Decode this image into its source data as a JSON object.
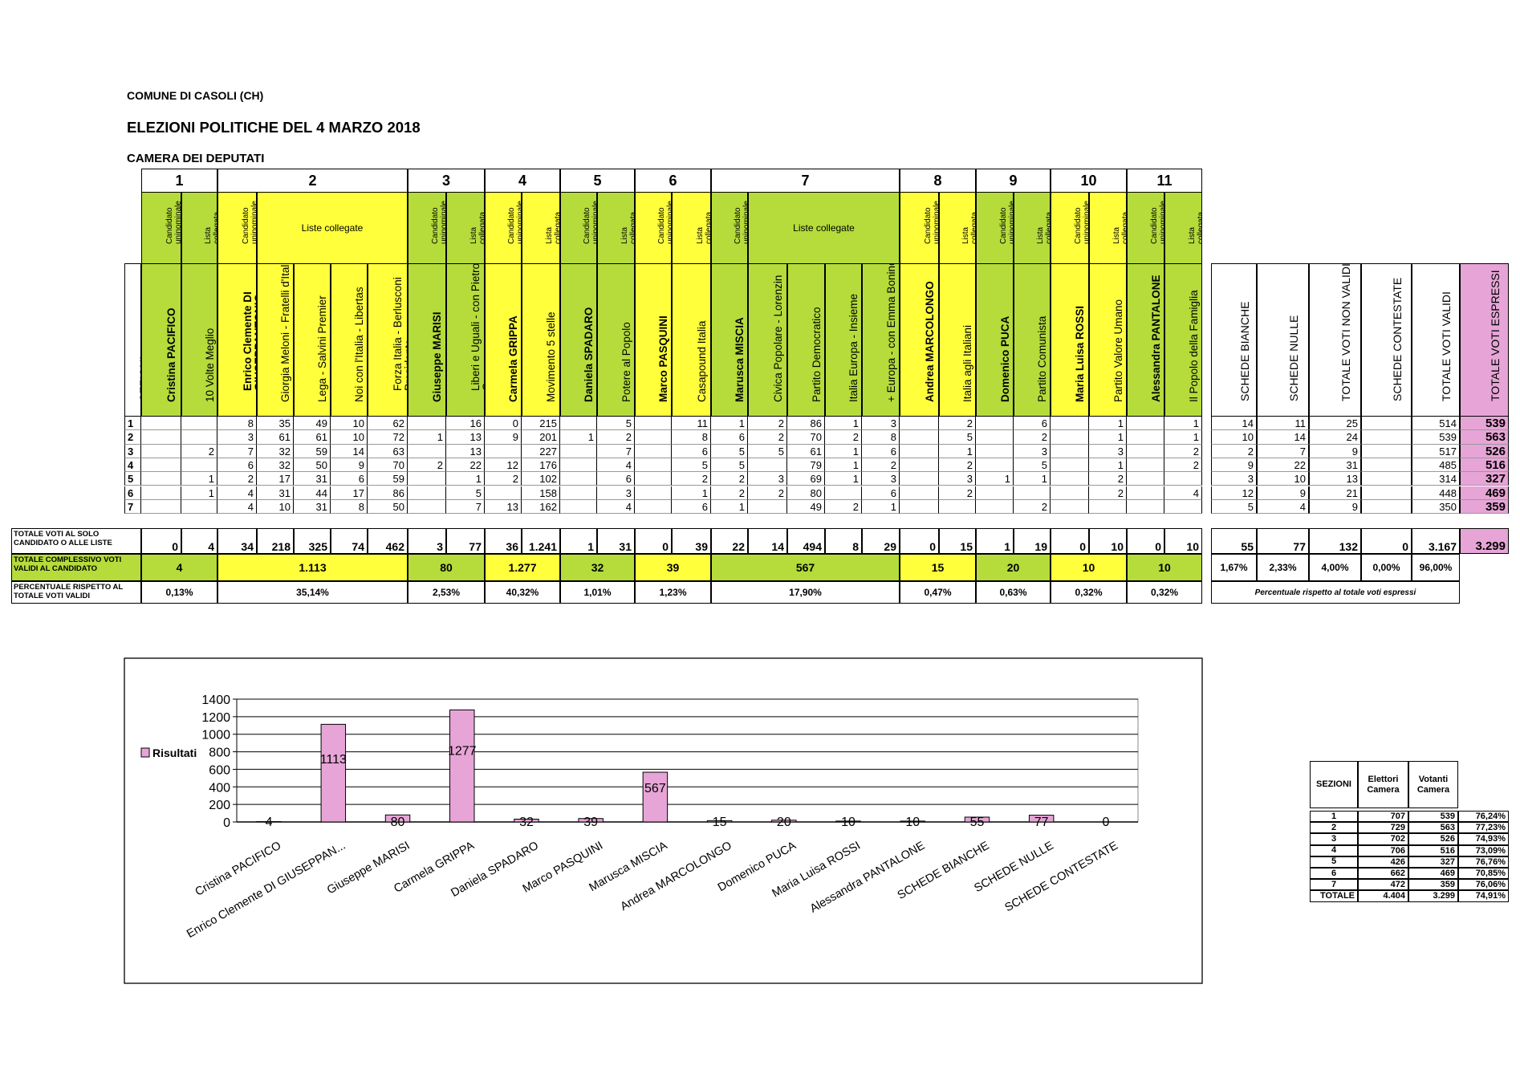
{
  "header": {
    "comune": "COMUNE DI CASOLI (CH)",
    "election": "ELEZIONI POLITICHE DEL 4 MARZO 2018",
    "chamber": "CAMERA DEI DEPUTATI"
  },
  "labels": {
    "sezioni": "SEZIONI",
    "cand_uni": "Candidato uninominale",
    "lista_coll": "Lista collegata",
    "liste_coll": "Liste collegate",
    "row_totale_solo": "TOTALE VOTI AL SOLO CANDIDATO O ALLE LISTE",
    "row_totale_compl": "TOTALE COMPLESSIVO VOTI VALIDI AL CANDIDATO",
    "row_percentuale": "PERCENTUALE RISPETTO AL TOTALE VOTI VALIDI",
    "pct_note": "Percentuale rispetto al totale voti espressi"
  },
  "groups": [
    {
      "n": "1",
      "compl": "4",
      "pct": "0,13%"
    },
    {
      "n": "2",
      "compl": "1.113",
      "pct": "35,14%"
    },
    {
      "n": "3",
      "compl": "80",
      "pct": "2,53%"
    },
    {
      "n": "4",
      "compl": "1.277",
      "pct": "40,32%"
    },
    {
      "n": "5",
      "compl": "32",
      "pct": "1,01%"
    },
    {
      "n": "6",
      "compl": "39",
      "pct": "1,23%"
    },
    {
      "n": "7",
      "compl": "567",
      "pct": "17,90%"
    },
    {
      "n": "8",
      "compl": "15",
      "pct": "0,47%"
    },
    {
      "n": "9",
      "compl": "20",
      "pct": "0,63%"
    },
    {
      "n": "10",
      "compl": "10",
      "pct": "0,32%"
    },
    {
      "n": "11",
      "compl": "10",
      "pct": "0,32%"
    }
  ],
  "columns": [
    {
      "name": "Cristina PACIFICO",
      "cand": true,
      "vals": [
        "",
        "",
        "",
        "",
        "",
        "",
        ""
      ],
      "total": "0"
    },
    {
      "name": "10 Volte Meglio",
      "cand": false,
      "vals": [
        "",
        "",
        "2",
        "",
        "1",
        "1",
        ""
      ],
      "total": "4"
    },
    {
      "name": "Enrico Clemente DI GIUSEPPANTONIO",
      "cand": true,
      "vals": [
        "8",
        "3",
        "7",
        "6",
        "2",
        "4",
        "4"
      ],
      "total": "34"
    },
    {
      "name": "Giorgia Meloni - Fratelli d'Italia",
      "cand": false,
      "vals": [
        "35",
        "61",
        "32",
        "32",
        "17",
        "31",
        "10"
      ],
      "total": "218"
    },
    {
      "name": "Lega - Salvini Premier",
      "cand": false,
      "vals": [
        "49",
        "61",
        "59",
        "50",
        "31",
        "44",
        "31"
      ],
      "total": "325"
    },
    {
      "name": "Noi con l'Italia - Libertas",
      "cand": false,
      "vals": [
        "10",
        "10",
        "14",
        "9",
        "6",
        "17",
        "8"
      ],
      "total": "74"
    },
    {
      "name": "Forza Italia - Berlusconi Presidente",
      "cand": false,
      "vals": [
        "62",
        "72",
        "63",
        "70",
        "59",
        "86",
        "50"
      ],
      "total": "462"
    },
    {
      "name": "Giuseppe MARISI",
      "cand": true,
      "vals": [
        "",
        "1",
        "",
        "2",
        "",
        "",
        ""
      ],
      "total": "3"
    },
    {
      "name": "Liberi e Uguali - con Pietro Grasso",
      "cand": false,
      "vals": [
        "16",
        "13",
        "13",
        "22",
        "1",
        "5",
        "7"
      ],
      "total": "77"
    },
    {
      "name": "Carmela GRIPPA",
      "cand": true,
      "vals": [
        "0",
        "9",
        "",
        "12",
        "2",
        "",
        "13"
      ],
      "total": "36"
    },
    {
      "name": "Movimento 5 stelle",
      "cand": false,
      "vals": [
        "215",
        "201",
        "227",
        "176",
        "102",
        "158",
        "162"
      ],
      "total": "1.241"
    },
    {
      "name": "Daniela SPADARO",
      "cand": true,
      "vals": [
        "",
        "1",
        "",
        "",
        "",
        "",
        ""
      ],
      "total": "1"
    },
    {
      "name": "Potere al Popolo",
      "cand": false,
      "vals": [
        "5",
        "2",
        "7",
        "4",
        "6",
        "3",
        "4"
      ],
      "total": "31"
    },
    {
      "name": "Marco PASQUINI",
      "cand": true,
      "vals": [
        "",
        "",
        "",
        "",
        "",
        "",
        ""
      ],
      "total": "0"
    },
    {
      "name": "Casapound Italia",
      "cand": false,
      "vals": [
        "11",
        "8",
        "6",
        "5",
        "2",
        "1",
        "6"
      ],
      "total": "39"
    },
    {
      "name": "Marusca MISCIA",
      "cand": true,
      "vals": [
        "1",
        "6",
        "5",
        "5",
        "2",
        "2",
        "1"
      ],
      "total": "22"
    },
    {
      "name": "Civica Popolare - Lorenzin",
      "cand": false,
      "vals": [
        "2",
        "2",
        "5",
        "",
        "3",
        "2",
        ""
      ],
      "total": "14"
    },
    {
      "name": "Partito Democratico",
      "cand": false,
      "vals": [
        "86",
        "70",
        "61",
        "79",
        "69",
        "80",
        "49"
      ],
      "total": "494"
    },
    {
      "name": "Italia Europa - Insieme",
      "cand": false,
      "vals": [
        "1",
        "2",
        "1",
        "1",
        "1",
        "",
        "2"
      ],
      "total": "8"
    },
    {
      "name": "+ Europa - con Emma Bonino",
      "cand": false,
      "vals": [
        "3",
        "8",
        "6",
        "2",
        "3",
        "6",
        "1"
      ],
      "total": "29"
    },
    {
      "name": "Andrea MARCOLONGO",
      "cand": true,
      "vals": [
        "",
        "",
        "",
        "",
        "",
        "",
        ""
      ],
      "total": "0"
    },
    {
      "name": "Italia agli Italiani",
      "cand": false,
      "vals": [
        "2",
        "5",
        "1",
        "2",
        "3",
        "2",
        ""
      ],
      "total": "15"
    },
    {
      "name": "Domenico PUCA",
      "cand": true,
      "vals": [
        "",
        "",
        "",
        "",
        "1",
        "",
        ""
      ],
      "total": "1"
    },
    {
      "name": "Partito Comunista",
      "cand": false,
      "vals": [
        "6",
        "2",
        "3",
        "5",
        "1",
        "",
        "2"
      ],
      "total": "19"
    },
    {
      "name": "Maria Luisa ROSSI",
      "cand": true,
      "vals": [
        "",
        "",
        "",
        "",
        "",
        "",
        ""
      ],
      "total": "0"
    },
    {
      "name": "Partito Valore Umano",
      "cand": false,
      "vals": [
        "1",
        "1",
        "3",
        "1",
        "2",
        "2",
        ""
      ],
      "total": "10"
    },
    {
      "name": "Alessandra PANTALONE",
      "cand": true,
      "vals": [
        "",
        "",
        "",
        "",
        "",
        "",
        ""
      ],
      "total": "0"
    },
    {
      "name": "Il Popolo della Famiglia",
      "cand": false,
      "vals": [
        "1",
        "1",
        "2",
        "2",
        "",
        "4",
        ""
      ],
      "total": "10"
    }
  ],
  "sections": [
    "1",
    "2",
    "3",
    "4",
    "5",
    "6",
    "7"
  ],
  "summary": [
    {
      "name": "SCHEDE BIANCHE",
      "vals": [
        "14",
        "10",
        "2",
        "9",
        "3",
        "12",
        "5"
      ],
      "total": "55",
      "pct": "1,67%"
    },
    {
      "name": "SCHEDE NULLE",
      "vals": [
        "11",
        "14",
        "7",
        "22",
        "10",
        "9",
        "4"
      ],
      "total": "77",
      "pct": "2,33%"
    },
    {
      "name": "TOTALE VOTI NON VALIDI",
      "vals": [
        "25",
        "24",
        "9",
        "31",
        "13",
        "21",
        "9"
      ],
      "total": "132",
      "pct": "4,00%"
    },
    {
      "name": "SCHEDE CONTESTATE",
      "vals": [
        "",
        "",
        "",
        "",
        "",
        "",
        ""
      ],
      "total": "0",
      "pct": "0,00%"
    },
    {
      "name": "TOTALE VOTI VALIDI",
      "vals": [
        "514",
        "539",
        "517",
        "485",
        "314",
        "448",
        "350"
      ],
      "total": "3.167",
      "pct": "96,00%"
    },
    {
      "name": "TOTALE VOTI ESPRESSI",
      "vals": [
        "539",
        "563",
        "526",
        "516",
        "327",
        "469",
        "359"
      ],
      "total": "3.299",
      "pct": ""
    }
  ],
  "small_table": {
    "headers": [
      "SEZIONI",
      "Elettori Camera",
      "Votanti Camera"
    ],
    "rows": [
      [
        "1",
        "707",
        "539",
        "76,24%"
      ],
      [
        "2",
        "729",
        "563",
        "77,23%"
      ],
      [
        "3",
        "702",
        "526",
        "74,93%"
      ],
      [
        "4",
        "706",
        "516",
        "73,09%"
      ],
      [
        "5",
        "426",
        "327",
        "76,76%"
      ],
      [
        "6",
        "662",
        "469",
        "70,85%"
      ],
      [
        "7",
        "472",
        "359",
        "76,06%"
      ],
      [
        "TOTALE",
        "4.404",
        "3.299",
        "74,91%"
      ]
    ]
  },
  "chart_data": {
    "type": "bar",
    "categories": [
      "Cristina PACIFICO",
      "Enrico Clemente DI GIUSEPPAN...",
      "Giuseppe MARISI",
      "Carmela GRIPPA",
      "Daniela SPADARO",
      "Marco PASQUINI",
      "Marusca MISCIA",
      "Andrea MARCOLONGO",
      "Domenico PUCA",
      "Maria Luisa ROSSI",
      "Alessandra PANTALONE",
      "SCHEDE BIANCHE",
      "SCHEDE NULLE",
      "SCHEDE CONTESTATE"
    ],
    "series": [
      {
        "name": "Risultati",
        "values": [
          4,
          1113,
          80,
          1277,
          32,
          39,
          567,
          15,
          20,
          10,
          10,
          55,
          77,
          0
        ]
      }
    ],
    "ylim": [
      0,
      1400
    ],
    "yticks": [
      "0",
      "200",
      "400",
      "600",
      "800",
      "1000",
      "1200",
      "1400"
    ],
    "bar_color": "#e6a5d6",
    "grid": true,
    "legend": "left"
  },
  "colors": {
    "green": "#b5dc3a",
    "yellow": "#ffff3c",
    "pink": "#e6a5d6"
  }
}
